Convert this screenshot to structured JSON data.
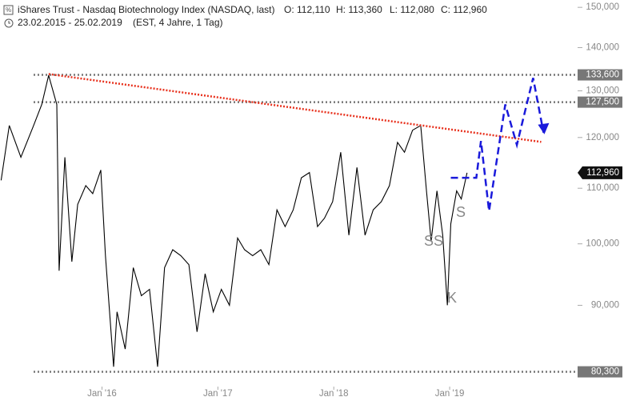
{
  "chart_data": {
    "type": "line",
    "title": "iShares Trust - Nasdaq Biotechnology Index (NASDAQ, last)",
    "ohlc": [
      "O: 112,110",
      "H: 113,360",
      "L: 112,080",
      "C: 112,960"
    ],
    "subtitle": "23.02.2015 - 25.02.2019",
    "subtitle_note": "(EST, 4 Jahre, 1 Tag)",
    "log_scale": true,
    "xlim": [
      2015.12,
      2020.09
    ],
    "xticks": [
      {
        "value": 2016,
        "label": "Jan '16"
      },
      {
        "value": 2017,
        "label": "Jan '17"
      },
      {
        "value": 2018,
        "label": "Jan '18"
      },
      {
        "value": 2019,
        "label": "Jan '19"
      }
    ],
    "ylim": [
      78400,
      151900
    ],
    "yticks": [
      {
        "value": 150000,
        "label": "150,000"
      },
      {
        "value": 140000,
        "label": "140,000"
      },
      {
        "value": 130000,
        "label": "130,000"
      },
      {
        "value": 120000,
        "label": "120,000"
      },
      {
        "value": 110000,
        "label": "110,000"
      },
      {
        "value": 100000,
        "label": "100,000"
      },
      {
        "value": 90000,
        "label": "90,000"
      }
    ],
    "series": [
      {
        "color": "#000000",
        "x": [
          2015.13,
          2015.2,
          2015.3,
          2015.41,
          2015.48,
          2015.54,
          2015.61,
          2015.63,
          2015.68,
          2015.74,
          2015.79,
          2015.86,
          2015.92,
          2015.99,
          2016.03,
          2016.1,
          2016.13,
          2016.2,
          2016.27,
          2016.34,
          2016.41,
          2016.48,
          2016.54,
          2016.61,
          2016.68,
          2016.75,
          2016.82,
          2016.89,
          2016.96,
          2017.03,
          2017.1,
          2017.17,
          2017.23,
          2017.3,
          2017.37,
          2017.44,
          2017.51,
          2017.58,
          2017.65,
          2017.72,
          2017.79,
          2017.86,
          2017.92,
          2017.99,
          2018.06,
          2018.13,
          2018.2,
          2018.27,
          2018.34,
          2018.41,
          2018.48,
          2018.55,
          2018.61,
          2018.68,
          2018.75,
          2018.8,
          2018.84,
          2018.89,
          2018.94,
          2018.98,
          2019.01,
          2019.06,
          2019.1,
          2019.15
        ],
        "values": [
          111500,
          122500,
          116000,
          122500,
          127000,
          133500,
          127000,
          95500,
          116000,
          97000,
          107000,
          110500,
          109000,
          113500,
          98000,
          81000,
          89000,
          83500,
          96000,
          91500,
          92500,
          81000,
          96000,
          99000,
          98000,
          96500,
          86000,
          95000,
          89000,
          92500,
          90000,
          101000,
          99000,
          98000,
          99000,
          96500,
          106000,
          103000,
          106000,
          112000,
          113000,
          103000,
          104500,
          107500,
          117000,
          101500,
          114000,
          101500,
          106000,
          107500,
          110500,
          119000,
          117000,
          121500,
          122500,
          109500,
          100500,
          109500,
          101500,
          90000,
          103500,
          109500,
          108000,
          112960
        ]
      }
    ],
    "levels": [
      {
        "value": 133600,
        "label": "133,600"
      },
      {
        "value": 127500,
        "label": "127,500"
      },
      {
        "value": 80300,
        "label": "80,300"
      }
    ],
    "last_price": {
      "value": 112960,
      "label": "112,960"
    },
    "trendline": {
      "color": "#e8321e",
      "x": [
        2015.54,
        2019.79
      ],
      "values": [
        133800,
        119100
      ]
    },
    "projection": {
      "color": "#1a1adb",
      "x": [
        2019.01,
        2019.23,
        2019.27,
        2019.34,
        2019.48,
        2019.58,
        2019.72,
        2019.81
      ],
      "values": [
        112000,
        112000,
        119300,
        105800,
        127000,
        118500,
        132900,
        121000
      ]
    },
    "annotations": [
      "SS",
      "S",
      "K"
    ]
  }
}
